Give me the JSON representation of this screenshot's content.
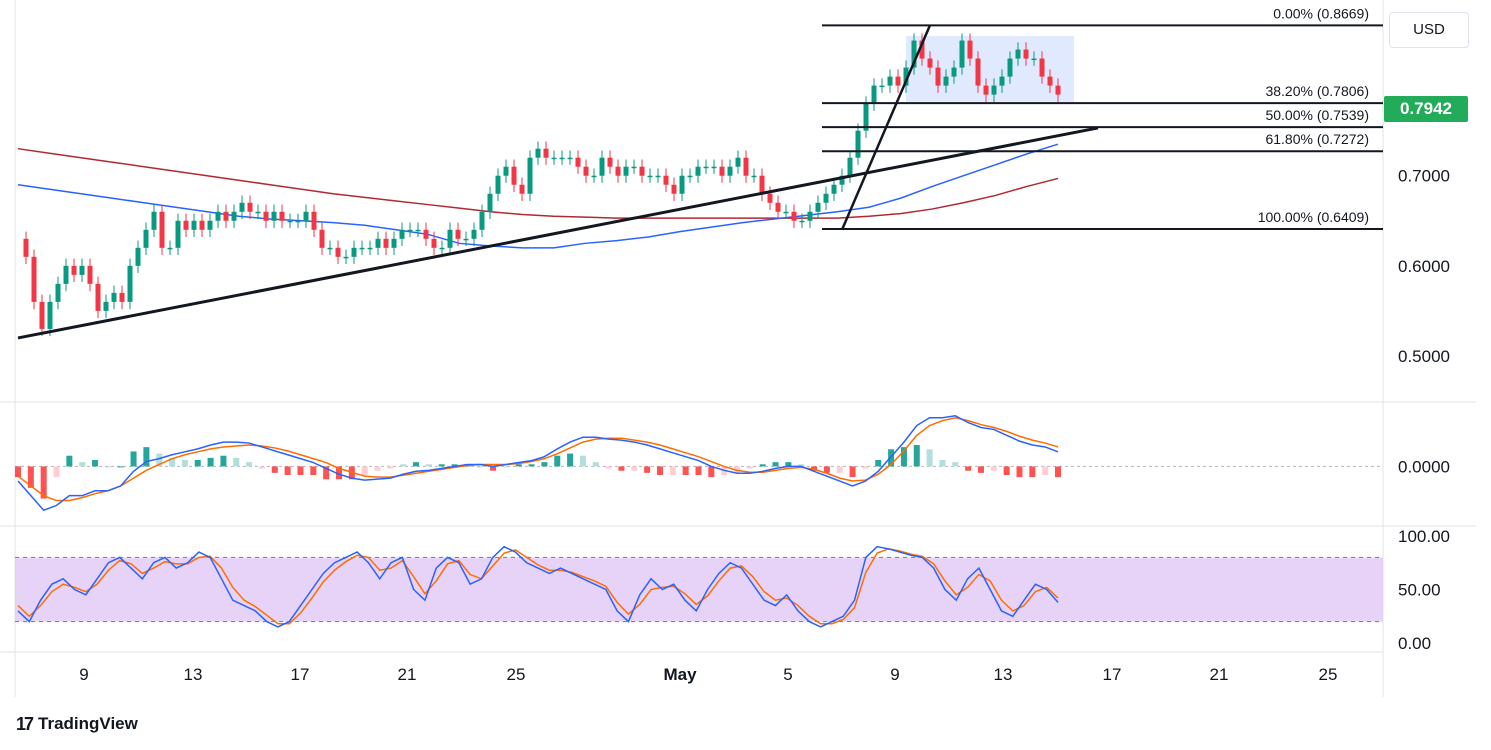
{
  "header": {
    "currency": "USD",
    "last_price": "0.7942"
  },
  "footer": {
    "brand": "TradingView"
  },
  "colors": {
    "up": "#089981",
    "down": "#f23645",
    "last_price_bg": "#22ab58",
    "sma_fast": "#2962ff",
    "sma_slow": "#b22833",
    "macd": "#2962ff",
    "signal": "#ff6d00",
    "stoch_band": "#e1c8f5"
  },
  "chart_data": {
    "type": "line",
    "price_axis": {
      "ylim": [
        0.46,
        0.895
      ],
      "ticks": [
        "0.7000",
        "0.6000",
        "0.5000"
      ],
      "tick_values": [
        0.7,
        0.6,
        0.5
      ]
    },
    "x_ticks": [
      "9",
      "13",
      "17",
      "21",
      "25",
      "May",
      "5",
      "9",
      "13",
      "17",
      "21",
      "25"
    ],
    "fibonacci": [
      {
        "label": "0.00% (0.8669)",
        "value": 0.8669
      },
      {
        "label": "38.20% (0.7806)",
        "value": 0.7806
      },
      {
        "label": "50.00% (0.7539)",
        "value": 0.7539
      },
      {
        "label": "61.80% (0.7272)",
        "value": 0.7272
      },
      {
        "label": "100.00% (0.6409)",
        "value": 0.6409
      }
    ],
    "price_series": [
      0.63,
      0.61,
      0.56,
      0.53,
      0.56,
      0.58,
      0.6,
      0.59,
      0.6,
      0.58,
      0.55,
      0.56,
      0.57,
      0.56,
      0.6,
      0.62,
      0.64,
      0.66,
      0.62,
      0.62,
      0.65,
      0.64,
      0.65,
      0.64,
      0.65,
      0.66,
      0.65,
      0.66,
      0.67,
      0.66,
      0.66,
      0.65,
      0.66,
      0.65,
      0.65,
      0.65,
      0.66,
      0.64,
      0.62,
      0.62,
      0.61,
      0.61,
      0.62,
      0.62,
      0.62,
      0.63,
      0.62,
      0.63,
      0.64,
      0.64,
      0.64,
      0.63,
      0.62,
      0.62,
      0.64,
      0.63,
      0.63,
      0.64,
      0.66,
      0.68,
      0.7,
      0.71,
      0.69,
      0.68,
      0.72,
      0.73,
      0.72,
      0.72,
      0.72,
      0.72,
      0.71,
      0.7,
      0.7,
      0.72,
      0.71,
      0.7,
      0.71,
      0.71,
      0.7,
      0.7,
      0.7,
      0.69,
      0.68,
      0.7,
      0.7,
      0.71,
      0.71,
      0.71,
      0.7,
      0.71,
      0.72,
      0.7,
      0.7,
      0.68,
      0.67,
      0.66,
      0.66,
      0.65,
      0.65,
      0.66,
      0.67,
      0.68,
      0.69,
      0.7,
      0.72,
      0.75,
      0.78,
      0.8,
      0.8,
      0.81,
      0.8,
      0.82,
      0.85,
      0.83,
      0.82,
      0.8,
      0.81,
      0.82,
      0.85,
      0.83,
      0.8,
      0.79,
      0.8,
      0.81,
      0.83,
      0.84,
      0.83,
      0.83,
      0.81,
      0.8,
      0.79
    ],
    "sma_fast": [
      0.69,
      0.685,
      0.68,
      0.675,
      0.67,
      0.665,
      0.66,
      0.655,
      0.652,
      0.65,
      0.648,
      0.645,
      0.64,
      0.635,
      0.625,
      0.622,
      0.62,
      0.62,
      0.625,
      0.628,
      0.632,
      0.638,
      0.643,
      0.648,
      0.652,
      0.656,
      0.66,
      0.665,
      0.675,
      0.688,
      0.7,
      0.712,
      0.724,
      0.735
    ],
    "sma_slow": [
      0.73,
      0.725,
      0.72,
      0.715,
      0.71,
      0.705,
      0.7,
      0.695,
      0.69,
      0.685,
      0.68,
      0.676,
      0.672,
      0.668,
      0.664,
      0.66,
      0.657,
      0.655,
      0.654,
      0.653,
      0.653,
      0.653,
      0.653,
      0.653,
      0.653,
      0.653,
      0.653,
      0.655,
      0.658,
      0.663,
      0.67,
      0.678,
      0.688,
      0.697
    ],
    "trendline": {
      "from": [
        0,
        0.52
      ],
      "to": [
        135,
        0.753
      ]
    },
    "rally_line": {
      "from": [
        103,
        0.64
      ],
      "to": [
        114,
        0.867
      ]
    },
    "consolidation_box": {
      "from_bar": 111,
      "to_bar": 132,
      "low": 0.782,
      "high": 0.855
    },
    "macd": {
      "zero_label": "0.0000",
      "ylim": [
        -0.055,
        0.06
      ],
      "macd": [
        -0.015,
        -0.03,
        -0.045,
        -0.04,
        -0.03,
        -0.03,
        -0.025,
        -0.025,
        -0.02,
        -0.005,
        0.005,
        0.008,
        0.012,
        0.015,
        0.018,
        0.022,
        0.025,
        0.025,
        0.024,
        0.02,
        0.016,
        0.012,
        0.008,
        0.004,
        -0.002,
        -0.008,
        -0.012,
        -0.014,
        -0.013,
        -0.012,
        -0.008,
        -0.005,
        -0.004,
        -0.002,
        0.0,
        0.002,
        0.002,
        0.0,
        0.002,
        0.004,
        0.006,
        0.01,
        0.018,
        0.025,
        0.03,
        0.03,
        0.028,
        0.027,
        0.025,
        0.022,
        0.018,
        0.014,
        0.01,
        0.006,
        0.0,
        -0.004,
        -0.007,
        -0.007,
        -0.005,
        -0.002,
        0.0,
        0.0,
        -0.005,
        -0.01,
        -0.015,
        -0.02,
        -0.015,
        -0.005,
        0.01,
        0.025,
        0.042,
        0.05,
        0.05,
        0.052,
        0.045,
        0.04,
        0.038,
        0.032,
        0.026,
        0.022,
        0.02,
        0.015
      ],
      "signal": [
        -0.01,
        -0.02,
        -0.03,
        -0.035,
        -0.035,
        -0.032,
        -0.028,
        -0.025,
        -0.02,
        -0.012,
        -0.004,
        0.002,
        0.008,
        0.012,
        0.015,
        0.018,
        0.02,
        0.021,
        0.022,
        0.021,
        0.019,
        0.016,
        0.012,
        0.008,
        0.004,
        -0.002,
        -0.006,
        -0.01,
        -0.011,
        -0.011,
        -0.009,
        -0.007,
        -0.005,
        -0.003,
        -0.001,
        0.001,
        0.002,
        0.002,
        0.002,
        0.003,
        0.005,
        0.008,
        0.013,
        0.019,
        0.025,
        0.028,
        0.029,
        0.029,
        0.027,
        0.025,
        0.022,
        0.018,
        0.014,
        0.01,
        0.005,
        0.0,
        -0.004,
        -0.006,
        -0.006,
        -0.004,
        -0.002,
        -0.001,
        -0.003,
        -0.007,
        -0.012,
        -0.015,
        -0.014,
        -0.008,
        0.002,
        0.016,
        0.032,
        0.042,
        0.047,
        0.05,
        0.047,
        0.043,
        0.04,
        0.036,
        0.031,
        0.027,
        0.024,
        0.02
      ]
    },
    "stochastic": {
      "ticks": [
        "100.00",
        "50.00",
        "0.00"
      ],
      "tick_values": [
        100,
        50,
        0
      ],
      "upper": 80,
      "lower": 20,
      "k": [
        30,
        20,
        40,
        55,
        60,
        50,
        45,
        60,
        75,
        80,
        70,
        60,
        75,
        80,
        70,
        75,
        85,
        80,
        60,
        40,
        35,
        30,
        20,
        15,
        20,
        35,
        50,
        65,
        75,
        80,
        85,
        75,
        60,
        75,
        80,
        50,
        40,
        70,
        80,
        75,
        55,
        60,
        80,
        90,
        85,
        75,
        70,
        65,
        70,
        65,
        60,
        55,
        50,
        30,
        20,
        45,
        60,
        50,
        55,
        40,
        30,
        50,
        65,
        75,
        70,
        55,
        40,
        35,
        45,
        30,
        20,
        15,
        20,
        25,
        40,
        80,
        90,
        88,
        85,
        82,
        80,
        70,
        50,
        40,
        60,
        70,
        50,
        30,
        25,
        40,
        55,
        50,
        38
      ],
      "d": [
        35,
        25,
        35,
        48,
        55,
        52,
        48,
        55,
        68,
        77,
        74,
        65,
        70,
        76,
        74,
        74,
        80,
        81,
        70,
        52,
        40,
        34,
        26,
        18,
        18,
        28,
        42,
        57,
        68,
        76,
        82,
        80,
        68,
        70,
        77,
        62,
        46,
        58,
        74,
        77,
        64,
        60,
        72,
        84,
        87,
        80,
        73,
        68,
        68,
        66,
        62,
        58,
        53,
        38,
        27,
        36,
        50,
        52,
        53,
        46,
        36,
        44,
        58,
        70,
        72,
        62,
        48,
        40,
        42,
        35,
        25,
        18,
        18,
        22,
        33,
        66,
        84,
        88,
        86,
        83,
        81,
        74,
        58,
        45,
        52,
        64,
        58,
        40,
        30,
        35,
        48,
        52,
        42
      ]
    }
  }
}
